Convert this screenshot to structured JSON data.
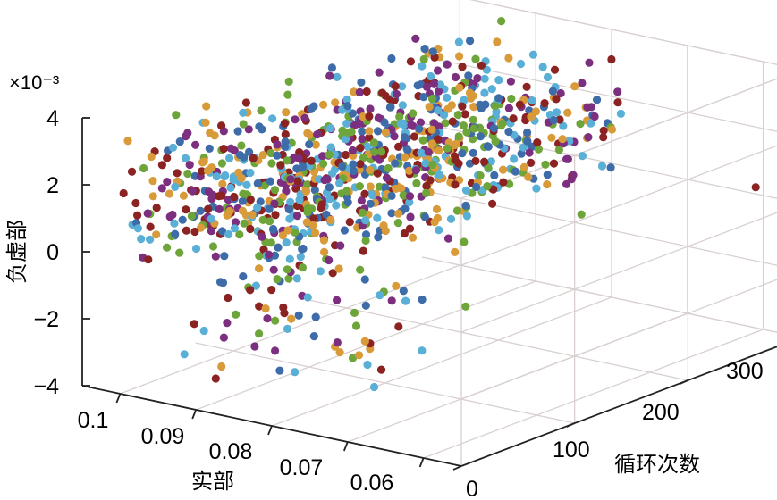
{
  "chart_data": {
    "type": "scatter",
    "projection": "3d",
    "xlabel": "实部",
    "ylabel": "循环次数",
    "zlabel": "负虚部",
    "xlim": [
      0.055,
      0.105
    ],
    "ylim": [
      0,
      300
    ],
    "zlim": [
      -0.004,
      0.004
    ],
    "z_multiplier_label": "×10⁻³",
    "x_ticks": [
      "0.1",
      "0.09",
      "0.08",
      "0.07",
      "0.06"
    ],
    "x_tick_values": [
      0.1,
      0.09,
      0.08,
      0.07,
      0.06
    ],
    "y_ticks": [
      "0",
      "100",
      "200",
      "300"
    ],
    "y_tick_values": [
      0,
      100,
      200,
      300
    ],
    "z_ticks": [
      "4",
      "2",
      "0",
      "−2",
      "−4"
    ],
    "z_tick_values": [
      4,
      2,
      0,
      -2,
      -4
    ],
    "grid": true,
    "legend": "none",
    "point_colors": [
      "#8B2323",
      "#D99A3A",
      "#7C2E7F",
      "#6EA53A",
      "#5AAFD6",
      "#3E6CA8"
    ],
    "series_summary": [
      {
        "x_range": [
          0.075,
          0.1
        ],
        "y_range": [
          0,
          280
        ],
        "z_range_e3": [
          -2.5,
          4.5
        ],
        "count_approx": 1000
      },
      {
        "note_points": [
          {
            "x": 0.058,
            "y": 280,
            "z_e3": 0.6
          }
        ]
      }
    ]
  }
}
